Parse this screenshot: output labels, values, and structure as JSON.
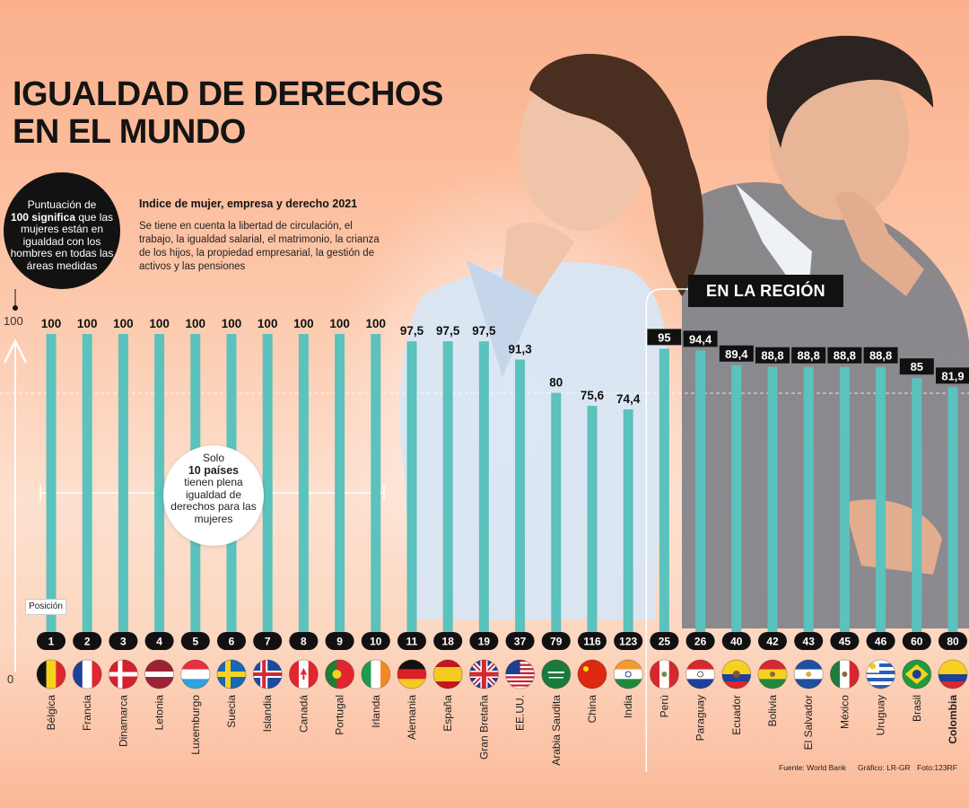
{
  "header": {
    "title_line1": "IGUALDAD DE DERECHOS",
    "title_line2": "EN EL MUNDO"
  },
  "note": {
    "line1": "Puntuación de",
    "strong": "100 significa",
    "rest": "que las mujeres están en igualdad con los hombres en todas las áreas medidas"
  },
  "info": {
    "title": "Indice de mujer, empresa y derecho 2021",
    "body": "Se tiene en cuenta la libertad de circulación, el trabajo, la igualdad salarial, el matrimonio, la crianza de los hijos, la propiedad empresarial, la gestión de activos y las pensiones"
  },
  "region_label": "EN LA REGIÓN",
  "solo": {
    "line1": "Solo",
    "strong": "10 países",
    "rest": "tienen plena igualdad de derechos para las mujeres"
  },
  "position_label": "Posición",
  "footer": {
    "source": "Fuente: World Bank",
    "graphic": "Gráfico: LR-GR",
    "photo": "Foto:123RF"
  },
  "colors": {
    "bar": "#5bc2bd",
    "label_bg": "#111111",
    "label_text": "#ffffff"
  },
  "chart_data": {
    "type": "bar",
    "title": "Indice de mujer, empresa y derecho 2021",
    "ylim": [
      0,
      100
    ],
    "yticks": [
      "0",
      "100"
    ],
    "categories": [
      "Bélgica",
      "Francia",
      "Dinamarca",
      "Letonia",
      "Luxemburgo",
      "Suecia",
      "Islandia",
      "Canadá",
      "Portugal",
      "Irlanda",
      "Alemania",
      "España",
      "Gran Bretaña",
      "EE.UU.",
      "Arabia Saudita",
      "China",
      "India",
      "Perú",
      "Paraguay",
      "Ecuador",
      "Bolivia",
      "El Salvador",
      "México",
      "Uruguay",
      "Brasil",
      "Colombia"
    ],
    "values": [
      100,
      100,
      100,
      100,
      100,
      100,
      100,
      100,
      100,
      100,
      97.5,
      97.5,
      97.5,
      91.3,
      80,
      75.6,
      74.4,
      95,
      94.4,
      89.4,
      88.8,
      88.8,
      88.8,
      88.8,
      85,
      81.9
    ],
    "value_labels": [
      "100",
      "100",
      "100",
      "100",
      "100",
      "100",
      "100",
      "100",
      "100",
      "100",
      "97,5",
      "97,5",
      "97,5",
      "91,3",
      "80",
      "75,6",
      "74,4",
      "95",
      "94,4",
      "89,4",
      "88,8",
      "88,8",
      "88,8",
      "88,8",
      "85",
      "81,9"
    ],
    "positions": [
      "1",
      "2",
      "3",
      "4",
      "5",
      "6",
      "7",
      "8",
      "9",
      "10",
      "11",
      "18",
      "19",
      "37",
      "79",
      "116",
      "123",
      "25",
      "26",
      "40",
      "42",
      "43",
      "45",
      "46",
      "60",
      "80"
    ],
    "region": [
      "world",
      "world",
      "world",
      "world",
      "world",
      "world",
      "world",
      "world",
      "world",
      "world",
      "world",
      "world",
      "world",
      "world",
      "world",
      "world",
      "world",
      "region",
      "region",
      "region",
      "region",
      "region",
      "region",
      "region",
      "region",
      "region"
    ],
    "flags": [
      "be-flag",
      "fr-flag",
      "dk-flag",
      "lv-flag",
      "lu-flag",
      "se-flag",
      "is-flag",
      "ca-flag",
      "pt-flag",
      "ie-flag",
      "de-flag",
      "es-flag",
      "gb-flag",
      "us-flag",
      "sa-flag",
      "cn-flag",
      "in-flag",
      "pe-flag",
      "py-flag",
      "ec-flag",
      "bo-flag",
      "sv-flag",
      "mx-flag",
      "uy-flag",
      "br-flag",
      "co-flag"
    ],
    "highlight": "Colombia"
  }
}
